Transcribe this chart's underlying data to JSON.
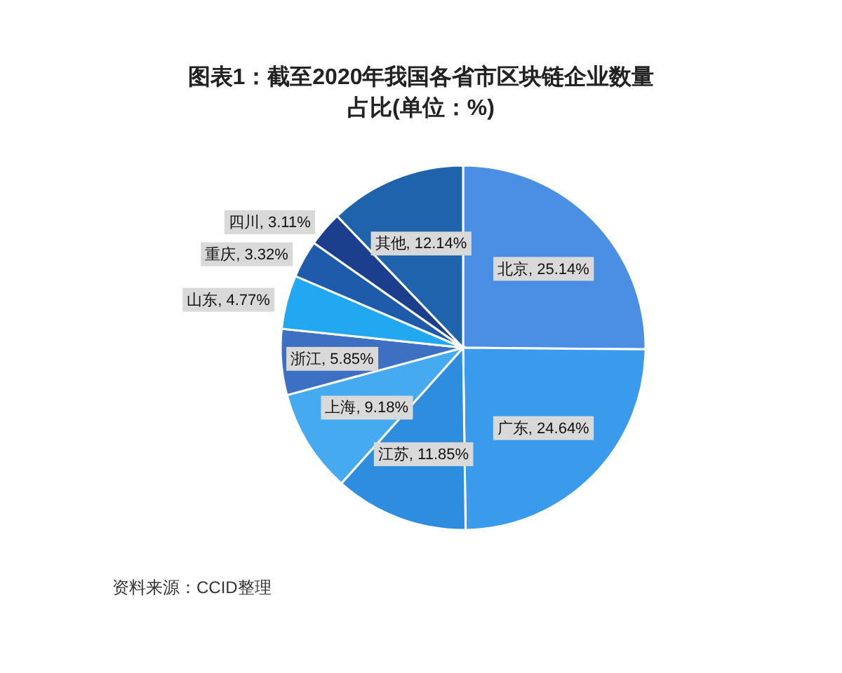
{
  "chart_data": {
    "type": "pie",
    "title": "图表1：截至2020年我国各省市区块链企业数量占比(单位：%)",
    "categories": [
      "北京",
      "广东",
      "江苏",
      "上海",
      "浙江",
      "山东",
      "重庆",
      "四川",
      "其他"
    ],
    "values": [
      25.14,
      24.64,
      11.85,
      9.18,
      5.85,
      4.77,
      3.32,
      3.11,
      12.14
    ],
    "value_labels": [
      "25.14%",
      "24.64%",
      "11.85%",
      "9.18%",
      "5.85%",
      "4.77%",
      "3.32%",
      "3.11%",
      "12.14%"
    ],
    "colors": [
      "#4a8fe3",
      "#3a9bec",
      "#2f8ddf",
      "#45aaf0",
      "#3d6fc2",
      "#22a8f0",
      "#1e5cab",
      "#1b3f8c",
      "#2063ad"
    ],
    "annotations": [
      "资料来源：CCID整理"
    ]
  }
}
